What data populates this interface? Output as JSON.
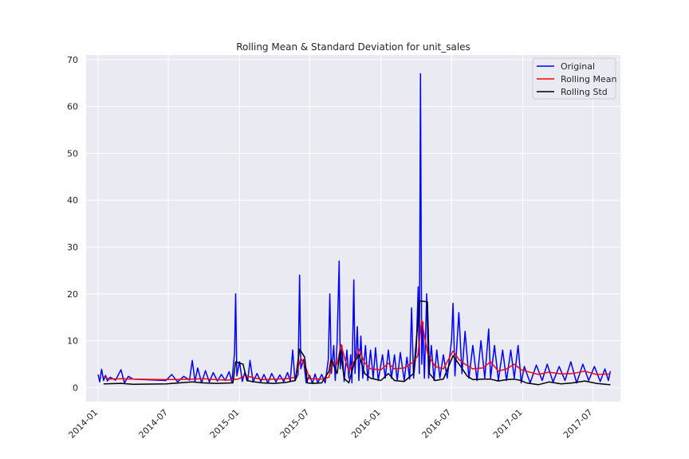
{
  "chart_data": {
    "type": "line",
    "title": "Rolling Mean & Standard Deviation for unit_sales",
    "xlabel": "",
    "ylabel": "",
    "x_ticks": [
      "2014-01",
      "2014-07",
      "2015-01",
      "2015-07",
      "2016-01",
      "2016-07",
      "2017-01",
      "2017-07"
    ],
    "y_ticks": [
      0,
      10,
      20,
      30,
      40,
      50,
      60,
      70
    ],
    "xlim": [
      "2013-12-01",
      "2017-09-10"
    ],
    "ylim": [
      -3,
      71
    ],
    "grid": true,
    "legend_position": "top-right",
    "series": [
      {
        "name": "Original",
        "color": "#0000ff",
        "points": [
          [
            "2014-01-01",
            2.8
          ],
          [
            "2014-01-05",
            1.2
          ],
          [
            "2014-01-10",
            3.9
          ],
          [
            "2014-01-15",
            1.5
          ],
          [
            "2014-01-20",
            2.6
          ],
          [
            "2014-01-25",
            1.4
          ],
          [
            "2014-02-01",
            2.2
          ],
          [
            "2014-02-15",
            1.6
          ],
          [
            "2014-03-01",
            3.8
          ],
          [
            "2014-03-10",
            1.0
          ],
          [
            "2014-03-20",
            2.4
          ],
          [
            "2014-04-01",
            1.8
          ],
          [
            "2014-06-25",
            1.5
          ],
          [
            "2014-07-10",
            2.8
          ],
          [
            "2014-07-25",
            1.2
          ],
          [
            "2014-08-10",
            2.4
          ],
          [
            "2014-08-25",
            1.6
          ],
          [
            "2014-09-01",
            5.8
          ],
          [
            "2014-09-08",
            1.3
          ],
          [
            "2014-09-15",
            4.2
          ],
          [
            "2014-09-25",
            1.0
          ],
          [
            "2014-10-05",
            3.6
          ],
          [
            "2014-10-15",
            1.2
          ],
          [
            "2014-10-25",
            3.2
          ],
          [
            "2014-11-05",
            1.4
          ],
          [
            "2014-11-15",
            2.8
          ],
          [
            "2014-11-25",
            1.5
          ],
          [
            "2014-12-05",
            3.4
          ],
          [
            "2014-12-12",
            1.2
          ],
          [
            "2014-12-19",
            7.3
          ],
          [
            "2014-12-22",
            20.0
          ],
          [
            "2014-12-25",
            2.5
          ],
          [
            "2015-01-01",
            5.5
          ],
          [
            "2015-01-08",
            1.3
          ],
          [
            "2015-01-15",
            3.3
          ],
          [
            "2015-01-22",
            1.4
          ],
          [
            "2015-01-28",
            5.8
          ],
          [
            "2015-02-05",
            1.2
          ],
          [
            "2015-02-15",
            3.0
          ],
          [
            "2015-02-25",
            1.3
          ],
          [
            "2015-03-05",
            2.8
          ],
          [
            "2015-03-15",
            1.0
          ],
          [
            "2015-03-25",
            3.0
          ],
          [
            "2015-04-05",
            1.2
          ],
          [
            "2015-04-15",
            2.7
          ],
          [
            "2015-04-25",
            1.3
          ],
          [
            "2015-05-05",
            3.2
          ],
          [
            "2015-05-12",
            1.4
          ],
          [
            "2015-05-18",
            8.0
          ],
          [
            "2015-05-24",
            1.5
          ],
          [
            "2015-06-01",
            2.8
          ],
          [
            "2015-06-05",
            24.0
          ],
          [
            "2015-06-08",
            4.0
          ],
          [
            "2015-06-15",
            6.0
          ],
          [
            "2015-06-22",
            1.0
          ],
          [
            "2015-07-01",
            2.6
          ],
          [
            "2015-07-08",
            0.9
          ],
          [
            "2015-07-15",
            2.9
          ],
          [
            "2015-07-22",
            1.0
          ],
          [
            "2015-08-01",
            2.8
          ],
          [
            "2015-08-10",
            1.0
          ],
          [
            "2015-08-18",
            6.0
          ],
          [
            "2015-08-22",
            20.0
          ],
          [
            "2015-08-26",
            3.0
          ],
          [
            "2015-09-01",
            9.0
          ],
          [
            "2015-09-05",
            1.5
          ],
          [
            "2015-09-10",
            10.0
          ],
          [
            "2015-09-15",
            27.0
          ],
          [
            "2015-09-18",
            4.0
          ],
          [
            "2015-09-22",
            9.0
          ],
          [
            "2015-09-28",
            1.3
          ],
          [
            "2015-10-05",
            8.0
          ],
          [
            "2015-10-10",
            2.0
          ],
          [
            "2015-10-15",
            7.0
          ],
          [
            "2015-10-18",
            1.0
          ],
          [
            "2015-10-23",
            23.0
          ],
          [
            "2015-10-26",
            3.0
          ],
          [
            "2015-11-01",
            13.0
          ],
          [
            "2015-11-05",
            1.5
          ],
          [
            "2015-11-10",
            11.0
          ],
          [
            "2015-11-15",
            2.0
          ],
          [
            "2015-11-22",
            9.0
          ],
          [
            "2015-11-28",
            1.5
          ],
          [
            "2015-12-05",
            8.0
          ],
          [
            "2015-12-12",
            2.0
          ],
          [
            "2015-12-18",
            8.5
          ],
          [
            "2015-12-25",
            1.5
          ],
          [
            "2016-01-05",
            7.0
          ],
          [
            "2016-01-12",
            2.0
          ],
          [
            "2016-01-20",
            8.0
          ],
          [
            "2016-01-28",
            2.0
          ],
          [
            "2016-02-05",
            7.0
          ],
          [
            "2016-02-12",
            1.5
          ],
          [
            "2016-02-20",
            7.5
          ],
          [
            "2016-03-01",
            1.5
          ],
          [
            "2016-03-08",
            6.5
          ],
          [
            "2016-03-15",
            1.8
          ],
          [
            "2016-03-20",
            17.0
          ],
          [
            "2016-03-25",
            2.0
          ],
          [
            "2016-04-01",
            8.0
          ],
          [
            "2016-04-06",
            21.5
          ],
          [
            "2016-04-09",
            3.0
          ],
          [
            "2016-04-12",
            67.0
          ],
          [
            "2016-04-15",
            5.0
          ],
          [
            "2016-04-18",
            14.0
          ],
          [
            "2016-04-22",
            2.0
          ],
          [
            "2016-04-28",
            20.0
          ],
          [
            "2016-05-03",
            2.0
          ],
          [
            "2016-05-10",
            9.0
          ],
          [
            "2016-05-17",
            1.5
          ],
          [
            "2016-05-24",
            8.0
          ],
          [
            "2016-06-01",
            2.0
          ],
          [
            "2016-06-10",
            7.0
          ],
          [
            "2016-06-20",
            2.0
          ],
          [
            "2016-07-01",
            10.0
          ],
          [
            "2016-07-05",
            18.0
          ],
          [
            "2016-07-10",
            2.5
          ],
          [
            "2016-07-20",
            16.0
          ],
          [
            "2016-07-28",
            3.0
          ],
          [
            "2016-08-05",
            12.0
          ],
          [
            "2016-08-15",
            2.0
          ],
          [
            "2016-08-25",
            9.0
          ],
          [
            "2016-09-05",
            1.5
          ],
          [
            "2016-09-15",
            10.0
          ],
          [
            "2016-09-25",
            2.0
          ],
          [
            "2016-10-05",
            12.5
          ],
          [
            "2016-10-10",
            2.0
          ],
          [
            "2016-10-20",
            9.0
          ],
          [
            "2016-10-30",
            1.5
          ],
          [
            "2016-11-10",
            8.0
          ],
          [
            "2016-11-20",
            1.5
          ],
          [
            "2016-12-01",
            8.0
          ],
          [
            "2016-12-10",
            2.0
          ],
          [
            "2016-12-20",
            9.0
          ],
          [
            "2016-12-28",
            1.0
          ],
          [
            "2017-01-05",
            4.5
          ],
          [
            "2017-01-20",
            1.0
          ],
          [
            "2017-02-05",
            4.8
          ],
          [
            "2017-02-20",
            1.5
          ],
          [
            "2017-03-05",
            5.0
          ],
          [
            "2017-03-20",
            1.2
          ],
          [
            "2017-04-05",
            4.5
          ],
          [
            "2017-04-20",
            1.5
          ],
          [
            "2017-05-05",
            5.5
          ],
          [
            "2017-05-20",
            1.0
          ],
          [
            "2017-06-05",
            5.0
          ],
          [
            "2017-06-20",
            1.5
          ],
          [
            "2017-07-05",
            4.5
          ],
          [
            "2017-07-20",
            1.3
          ],
          [
            "2017-08-01",
            4.0
          ],
          [
            "2017-08-10",
            1.5
          ],
          [
            "2017-08-15",
            3.5
          ]
        ]
      },
      {
        "name": "Rolling Mean",
        "color": "#ff0000",
        "points": [
          [
            "2014-01-15",
            2.3
          ],
          [
            "2014-02-01",
            1.8
          ],
          [
            "2014-03-01",
            1.9
          ],
          [
            "2014-04-01",
            1.8
          ],
          [
            "2014-06-25",
            1.7
          ],
          [
            "2014-09-01",
            1.8
          ],
          [
            "2014-10-01",
            1.9
          ],
          [
            "2014-11-01",
            1.7
          ],
          [
            "2014-12-01",
            1.6
          ],
          [
            "2014-12-28",
            1.8
          ],
          [
            "2015-01-15",
            2.6
          ],
          [
            "2015-02-01",
            2.2
          ],
          [
            "2015-03-01",
            1.7
          ],
          [
            "2015-04-01",
            1.8
          ],
          [
            "2015-05-01",
            1.9
          ],
          [
            "2015-05-25",
            2.2
          ],
          [
            "2015-06-08",
            6.3
          ],
          [
            "2015-06-20",
            4.5
          ],
          [
            "2015-07-01",
            1.9
          ],
          [
            "2015-08-01",
            1.8
          ],
          [
            "2015-08-20",
            2.2
          ],
          [
            "2015-08-28",
            5.5
          ],
          [
            "2015-09-10",
            5.0
          ],
          [
            "2015-09-20",
            9.2
          ],
          [
            "2015-09-30",
            6.0
          ],
          [
            "2015-10-10",
            3.5
          ],
          [
            "2015-10-28",
            6.2
          ],
          [
            "2015-11-05",
            8.2
          ],
          [
            "2015-11-20",
            5.3
          ],
          [
            "2015-12-05",
            4.0
          ],
          [
            "2016-01-01",
            3.8
          ],
          [
            "2016-01-20",
            5.2
          ],
          [
            "2016-02-05",
            4.0
          ],
          [
            "2016-03-01",
            4.2
          ],
          [
            "2016-03-25",
            5.5
          ],
          [
            "2016-04-05",
            6.8
          ],
          [
            "2016-04-15",
            14.5
          ],
          [
            "2016-04-20",
            12.0
          ],
          [
            "2016-05-01",
            7.0
          ],
          [
            "2016-05-20",
            4.5
          ],
          [
            "2016-06-10",
            4.0
          ],
          [
            "2016-07-05",
            7.8
          ],
          [
            "2016-07-20",
            6.0
          ],
          [
            "2016-08-05",
            5.0
          ],
          [
            "2016-08-25",
            4.0
          ],
          [
            "2016-09-20",
            4.2
          ],
          [
            "2016-10-10",
            5.5
          ],
          [
            "2016-10-30",
            3.5
          ],
          [
            "2016-11-20",
            4.0
          ],
          [
            "2016-12-10",
            5.0
          ],
          [
            "2016-12-28",
            3.8
          ],
          [
            "2017-01-10",
            3.5
          ],
          [
            "2017-02-10",
            2.8
          ],
          [
            "2017-03-10",
            3.3
          ],
          [
            "2017-04-10",
            2.9
          ],
          [
            "2017-05-10",
            3.0
          ],
          [
            "2017-06-10",
            3.5
          ],
          [
            "2017-07-10",
            2.8
          ],
          [
            "2017-08-15",
            2.9
          ]
        ]
      },
      {
        "name": "Rolling Std",
        "color": "#000000",
        "points": [
          [
            "2014-01-15",
            0.8
          ],
          [
            "2014-03-01",
            0.9
          ],
          [
            "2014-04-01",
            0.7
          ],
          [
            "2014-06-25",
            0.8
          ],
          [
            "2014-09-01",
            1.2
          ],
          [
            "2014-10-01",
            1.0
          ],
          [
            "2014-11-01",
            0.9
          ],
          [
            "2014-12-15",
            1.0
          ],
          [
            "2014-12-22",
            5.5
          ],
          [
            "2015-01-10",
            5.0
          ],
          [
            "2015-01-20",
            1.5
          ],
          [
            "2015-02-01",
            1.3
          ],
          [
            "2015-03-01",
            1.0
          ],
          [
            "2015-04-01",
            0.9
          ],
          [
            "2015-05-01",
            1.1
          ],
          [
            "2015-05-25",
            1.5
          ],
          [
            "2015-06-05",
            8.2
          ],
          [
            "2015-06-18",
            6.5
          ],
          [
            "2015-06-25",
            1.0
          ],
          [
            "2015-07-10",
            0.9
          ],
          [
            "2015-08-01",
            1.0
          ],
          [
            "2015-08-20",
            3.5
          ],
          [
            "2015-08-25",
            6.0
          ],
          [
            "2015-09-10",
            3.0
          ],
          [
            "2015-09-18",
            8.0
          ],
          [
            "2015-09-28",
            2.0
          ],
          [
            "2015-10-10",
            1.0
          ],
          [
            "2015-10-25",
            5.5
          ],
          [
            "2015-11-05",
            7.0
          ],
          [
            "2015-11-20",
            3.0
          ],
          [
            "2015-12-05",
            2.0
          ],
          [
            "2016-01-01",
            1.5
          ],
          [
            "2016-01-20",
            3.0
          ],
          [
            "2016-02-05",
            1.5
          ],
          [
            "2016-03-01",
            1.3
          ],
          [
            "2016-03-25",
            3.0
          ],
          [
            "2016-04-10",
            18.5
          ],
          [
            "2016-04-30",
            18.3
          ],
          [
            "2016-05-05",
            3.0
          ],
          [
            "2016-05-20",
            1.5
          ],
          [
            "2016-06-10",
            1.8
          ],
          [
            "2016-07-05",
            6.8
          ],
          [
            "2016-07-25",
            4.5
          ],
          [
            "2016-08-10",
            2.5
          ],
          [
            "2016-08-25",
            1.7
          ],
          [
            "2016-09-20",
            1.8
          ],
          [
            "2016-10-10",
            1.8
          ],
          [
            "2016-10-30",
            1.4
          ],
          [
            "2016-11-20",
            1.7
          ],
          [
            "2016-12-10",
            1.8
          ],
          [
            "2016-12-28",
            1.5
          ],
          [
            "2017-01-10",
            1.0
          ],
          [
            "2017-02-10",
            0.6
          ],
          [
            "2017-03-10",
            1.2
          ],
          [
            "2017-04-10",
            0.8
          ],
          [
            "2017-05-10",
            1.0
          ],
          [
            "2017-06-10",
            1.4
          ],
          [
            "2017-07-10",
            0.9
          ],
          [
            "2017-08-15",
            0.6
          ]
        ]
      }
    ]
  }
}
